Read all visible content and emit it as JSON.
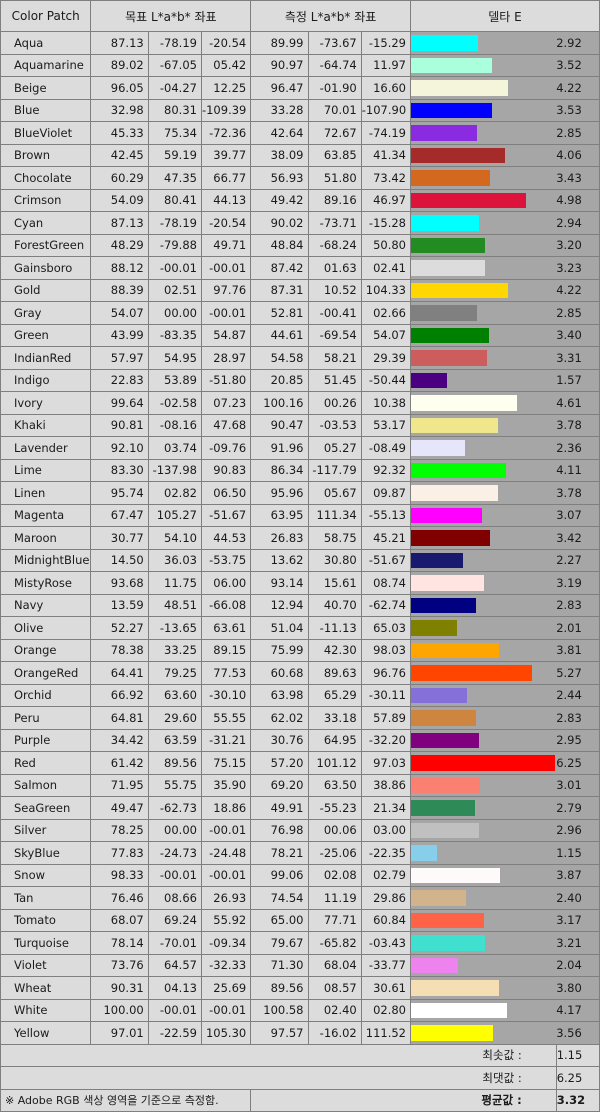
{
  "headers": {
    "patch": "Color Patch",
    "target": "목표 L*a*b* 좌표",
    "measured": "측정 L*a*b* 좌표",
    "delta": "델타 E"
  },
  "bar_max": 6.25,
  "rows": [
    {
      "name": "Aqua",
      "color": "#00ffff",
      "t": [
        "87.13",
        "-78.19",
        "-20.54"
      ],
      "m": [
        "89.99",
        "-73.67",
        "-15.29"
      ],
      "de": "2.92"
    },
    {
      "name": "Aquamarine",
      "color": "#aaffdd",
      "t": [
        "89.02",
        "-67.05",
        "05.42"
      ],
      "m": [
        "90.97",
        "-64.74",
        "11.97"
      ],
      "de": "3.52"
    },
    {
      "name": "Beige",
      "color": "#f5f5dc",
      "t": [
        "96.05",
        "-04.27",
        "12.25"
      ],
      "m": [
        "96.47",
        "-01.90",
        "16.60"
      ],
      "de": "4.22"
    },
    {
      "name": "Blue",
      "color": "#0000ff",
      "t": [
        "32.98",
        "80.31",
        "-109.39"
      ],
      "m": [
        "33.28",
        "70.01",
        "-107.90"
      ],
      "de": "3.53"
    },
    {
      "name": "BlueViolet",
      "color": "#8a2be2",
      "t": [
        "45.33",
        "75.34",
        "-72.36"
      ],
      "m": [
        "42.64",
        "72.67",
        "-74.19"
      ],
      "de": "2.85"
    },
    {
      "name": "Brown",
      "color": "#a52a2a",
      "t": [
        "42.45",
        "59.19",
        "39.77"
      ],
      "m": [
        "38.09",
        "63.85",
        "41.34"
      ],
      "de": "4.06"
    },
    {
      "name": "Chocolate",
      "color": "#d2691e",
      "t": [
        "60.29",
        "47.35",
        "66.77"
      ],
      "m": [
        "56.93",
        "51.80",
        "73.42"
      ],
      "de": "3.43"
    },
    {
      "name": "Crimson",
      "color": "#dc143c",
      "t": [
        "54.09",
        "80.41",
        "44.13"
      ],
      "m": [
        "49.42",
        "89.16",
        "46.97"
      ],
      "de": "4.98"
    },
    {
      "name": "Cyan",
      "color": "#00ffff",
      "t": [
        "87.13",
        "-78.19",
        "-20.54"
      ],
      "m": [
        "90.02",
        "-73.71",
        "-15.28"
      ],
      "de": "2.94"
    },
    {
      "name": "ForestGreen",
      "color": "#228b22",
      "t": [
        "48.29",
        "-79.88",
        "49.71"
      ],
      "m": [
        "48.84",
        "-68.24",
        "50.80"
      ],
      "de": "3.20"
    },
    {
      "name": "Gainsboro",
      "color": "#dcdcdc",
      "t": [
        "88.12",
        "-00.01",
        "-00.01"
      ],
      "m": [
        "87.42",
        "01.63",
        "02.41"
      ],
      "de": "3.23"
    },
    {
      "name": "Gold",
      "color": "#ffd700",
      "t": [
        "88.39",
        "02.51",
        "97.76"
      ],
      "m": [
        "87.31",
        "10.52",
        "104.33"
      ],
      "de": "4.22"
    },
    {
      "name": "Gray",
      "color": "#808080",
      "t": [
        "54.07",
        "00.00",
        "-00.01"
      ],
      "m": [
        "52.81",
        "-00.41",
        "02.66"
      ],
      "de": "2.85"
    },
    {
      "name": "Green",
      "color": "#008000",
      "t": [
        "43.99",
        "-83.35",
        "54.87"
      ],
      "m": [
        "44.61",
        "-69.54",
        "54.07"
      ],
      "de": "3.40"
    },
    {
      "name": "IndianRed",
      "color": "#cd5c5c",
      "t": [
        "57.97",
        "54.95",
        "28.97"
      ],
      "m": [
        "54.58",
        "58.21",
        "29.39"
      ],
      "de": "3.31"
    },
    {
      "name": "Indigo",
      "color": "#4b0082",
      "t": [
        "22.83",
        "53.89",
        "-51.80"
      ],
      "m": [
        "20.85",
        "51.45",
        "-50.44"
      ],
      "de": "1.57"
    },
    {
      "name": "Ivory",
      "color": "#fffff0",
      "t": [
        "99.64",
        "-02.58",
        "07.23"
      ],
      "m": [
        "100.16",
        "00.26",
        "10.38"
      ],
      "de": "4.61"
    },
    {
      "name": "Khaki",
      "color": "#f0e68c",
      "t": [
        "90.81",
        "-08.16",
        "47.68"
      ],
      "m": [
        "90.47",
        "-03.53",
        "53.17"
      ],
      "de": "3.78"
    },
    {
      "name": "Lavender",
      "color": "#e6e6fa",
      "t": [
        "92.10",
        "03.74",
        "-09.76"
      ],
      "m": [
        "91.96",
        "05.27",
        "-08.49"
      ],
      "de": "2.36"
    },
    {
      "name": "Lime",
      "color": "#00ff00",
      "t": [
        "83.30",
        "-137.98",
        "90.83"
      ],
      "m": [
        "86.34",
        "-117.79",
        "92.32"
      ],
      "de": "4.11"
    },
    {
      "name": "Linen",
      "color": "#faf0e6",
      "t": [
        "95.74",
        "02.82",
        "06.50"
      ],
      "m": [
        "95.96",
        "05.67",
        "09.87"
      ],
      "de": "3.78"
    },
    {
      "name": "Magenta",
      "color": "#ff00ff",
      "t": [
        "67.47",
        "105.27",
        "-51.67"
      ],
      "m": [
        "63.95",
        "111.34",
        "-55.13"
      ],
      "de": "3.07"
    },
    {
      "name": "Maroon",
      "color": "#800000",
      "t": [
        "30.77",
        "54.10",
        "44.53"
      ],
      "m": [
        "26.83",
        "58.75",
        "45.21"
      ],
      "de": "3.42"
    },
    {
      "name": "MidnightBlue",
      "color": "#191970",
      "t": [
        "14.50",
        "36.03",
        "-53.75"
      ],
      "m": [
        "13.62",
        "30.80",
        "-51.67"
      ],
      "de": "2.27"
    },
    {
      "name": "MistyRose",
      "color": "#ffe4e1",
      "t": [
        "93.68",
        "11.75",
        "06.00"
      ],
      "m": [
        "93.14",
        "15.61",
        "08.74"
      ],
      "de": "3.19"
    },
    {
      "name": "Navy",
      "color": "#000080",
      "t": [
        "13.59",
        "48.51",
        "-66.08"
      ],
      "m": [
        "12.94",
        "40.70",
        "-62.74"
      ],
      "de": "2.83"
    },
    {
      "name": "Olive",
      "color": "#808000",
      "t": [
        "52.27",
        "-13.65",
        "63.61"
      ],
      "m": [
        "51.04",
        "-11.13",
        "65.03"
      ],
      "de": "2.01"
    },
    {
      "name": "Orange",
      "color": "#ffa500",
      "t": [
        "78.38",
        "33.25",
        "89.15"
      ],
      "m": [
        "75.99",
        "42.30",
        "98.03"
      ],
      "de": "3.81"
    },
    {
      "name": "OrangeRed",
      "color": "#ff4500",
      "t": [
        "64.41",
        "79.25",
        "77.53"
      ],
      "m": [
        "60.68",
        "89.63",
        "96.76"
      ],
      "de": "5.27"
    },
    {
      "name": "Orchid",
      "color": "#8470d8",
      "t": [
        "66.92",
        "63.60",
        "-30.10"
      ],
      "m": [
        "63.98",
        "65.29",
        "-30.11"
      ],
      "de": "2.44"
    },
    {
      "name": "Peru",
      "color": "#cd853f",
      "t": [
        "64.81",
        "29.60",
        "55.55"
      ],
      "m": [
        "62.02",
        "33.18",
        "57.89"
      ],
      "de": "2.83"
    },
    {
      "name": "Purple",
      "color": "#800080",
      "t": [
        "34.42",
        "63.59",
        "-31.21"
      ],
      "m": [
        "30.76",
        "64.95",
        "-32.20"
      ],
      "de": "2.95"
    },
    {
      "name": "Red",
      "color": "#ff0000",
      "t": [
        "61.42",
        "89.56",
        "75.15"
      ],
      "m": [
        "57.20",
        "101.12",
        "97.03"
      ],
      "de": "6.25"
    },
    {
      "name": "Salmon",
      "color": "#fa8072",
      "t": [
        "71.95",
        "55.75",
        "35.90"
      ],
      "m": [
        "69.20",
        "63.50",
        "38.86"
      ],
      "de": "3.01"
    },
    {
      "name": "SeaGreen",
      "color": "#2e8b57",
      "t": [
        "49.47",
        "-62.73",
        "18.86"
      ],
      "m": [
        "49.91",
        "-55.23",
        "21.34"
      ],
      "de": "2.79"
    },
    {
      "name": "Silver",
      "color": "#c0c0c0",
      "t": [
        "78.25",
        "00.00",
        "-00.01"
      ],
      "m": [
        "76.98",
        "00.06",
        "03.00"
      ],
      "de": "2.96"
    },
    {
      "name": "SkyBlue",
      "color": "#87ceeb",
      "t": [
        "77.83",
        "-24.73",
        "-24.48"
      ],
      "m": [
        "78.21",
        "-25.06",
        "-22.35"
      ],
      "de": "1.15"
    },
    {
      "name": "Snow",
      "color": "#fffafa",
      "t": [
        "98.33",
        "-00.01",
        "-00.01"
      ],
      "m": [
        "99.06",
        "02.08",
        "02.79"
      ],
      "de": "3.87"
    },
    {
      "name": "Tan",
      "color": "#d2b48c",
      "t": [
        "76.46",
        "08.66",
        "26.93"
      ],
      "m": [
        "74.54",
        "11.19",
        "29.86"
      ],
      "de": "2.40"
    },
    {
      "name": "Tomato",
      "color": "#ff6347",
      "t": [
        "68.07",
        "69.24",
        "55.92"
      ],
      "m": [
        "65.00",
        "77.71",
        "60.84"
      ],
      "de": "3.17"
    },
    {
      "name": "Turquoise",
      "color": "#40e0d0",
      "t": [
        "78.14",
        "-70.01",
        "-09.34"
      ],
      "m": [
        "79.67",
        "-65.82",
        "-03.43"
      ],
      "de": "3.21"
    },
    {
      "name": "Violet",
      "color": "#ee82ee",
      "t": [
        "73.76",
        "64.57",
        "-32.33"
      ],
      "m": [
        "71.30",
        "68.04",
        "-33.77"
      ],
      "de": "2.04"
    },
    {
      "name": "Wheat",
      "color": "#f5deb3",
      "t": [
        "90.31",
        "04.13",
        "25.69"
      ],
      "m": [
        "89.56",
        "08.57",
        "30.61"
      ],
      "de": "3.80"
    },
    {
      "name": "White",
      "color": "#ffffff",
      "t": [
        "100.00",
        "-00.01",
        "-00.01"
      ],
      "m": [
        "100.58",
        "02.40",
        "02.80"
      ],
      "de": "4.17"
    },
    {
      "name": "Yellow",
      "color": "#ffff00",
      "t": [
        "97.01",
        "-22.59",
        "105.30"
      ],
      "m": [
        "97.57",
        "-16.02",
        "111.52"
      ],
      "de": "3.56"
    }
  ],
  "summary": {
    "min_label": "최솟값 :",
    "min_value": "1.15",
    "max_label": "최댓값 :",
    "max_value": "6.25",
    "avg_label": "평균값 :",
    "avg_value": "3.32",
    "note": "※ Adobe RGB 색상 영역을 기준으로 측정함."
  }
}
